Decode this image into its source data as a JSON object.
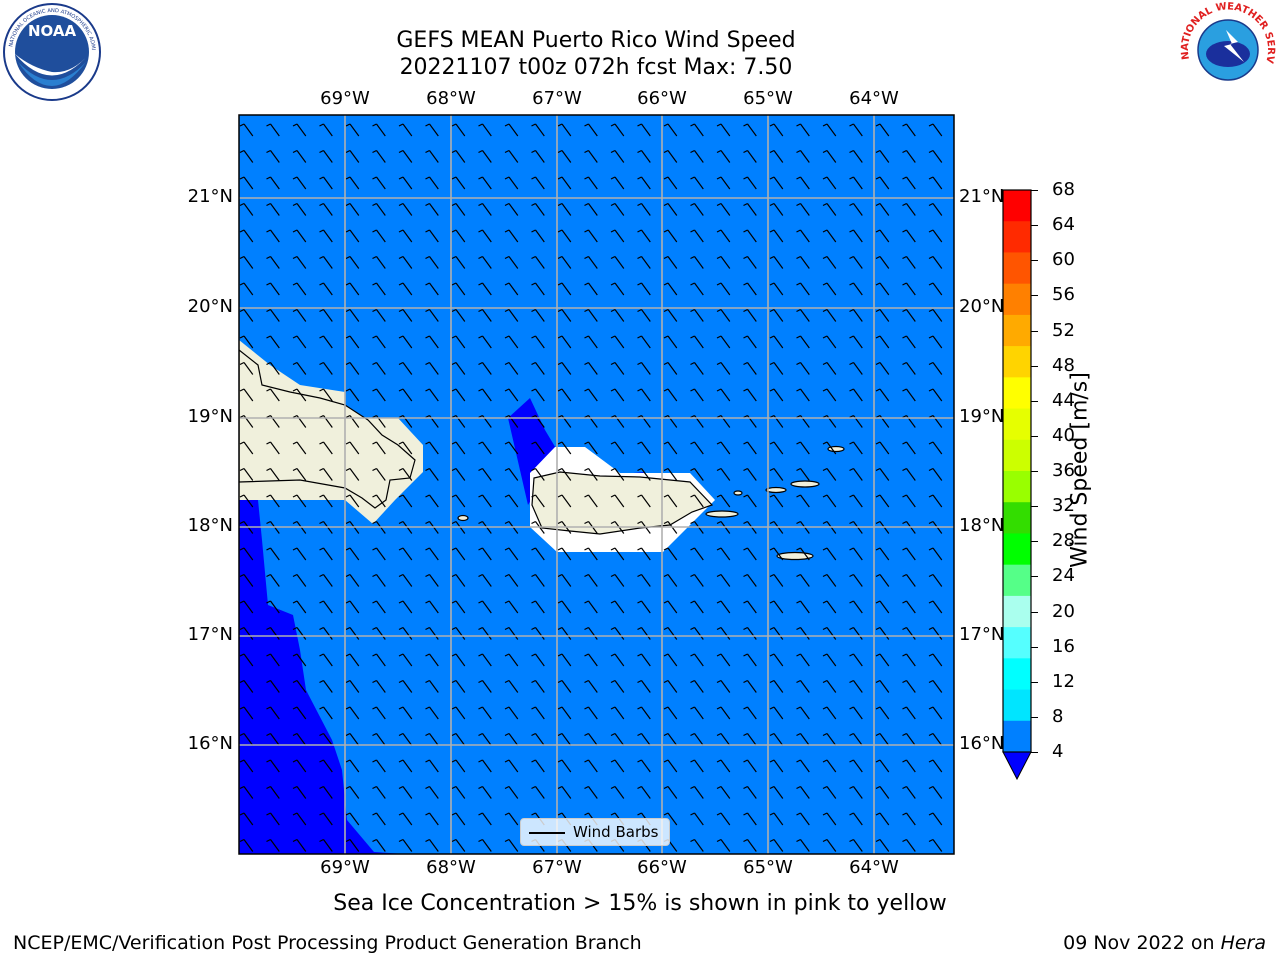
{
  "header": {
    "title_line1": "GEFS MEAN Puerto Rico Wind Speed",
    "title_line2": "20221107 t00z 072h fcst   Max: 7.50"
  },
  "logos": {
    "left": {
      "name": "noaa-logo",
      "text": "NOAA"
    },
    "right": {
      "name": "nws-logo",
      "text": "NATIONAL WEATHER SERVICE"
    }
  },
  "map": {
    "lon_labels": [
      "69°W",
      "68°W",
      "67°W",
      "66°W",
      "65°W",
      "64°W"
    ],
    "lat_labels": [
      "21°N",
      "20°N",
      "19°N",
      "18°N",
      "17°N",
      "16°N"
    ],
    "lon_range": [
      -70.0,
      -63.25
    ],
    "lat_range": [
      15.0,
      21.75
    ],
    "gridlines": true,
    "colors": {
      "ocean": "#0080ff",
      "low_wind": "#0000ff",
      "land": "#f0f0dc",
      "grid": "#b0b0b0"
    },
    "legend_label": "Wind Barbs",
    "barb_direction_deg": 110
  },
  "colorbar": {
    "label": "Wind Speed [m/s]",
    "ticks": [
      "68",
      "64",
      "60",
      "56",
      "52",
      "48",
      "44",
      "40",
      "36",
      "32",
      "28",
      "24",
      "20",
      "16",
      "12",
      "8",
      "4"
    ],
    "colors": [
      "#ff0000",
      "#ff2a00",
      "#ff5500",
      "#ff8000",
      "#ffaa00",
      "#ffd400",
      "#ffff00",
      "#e6ff00",
      "#ccff00",
      "#99ff00",
      "#33dd00",
      "#00ff00",
      "#55ff88",
      "#aaffee",
      "#55ffff",
      "#00ffff",
      "#00e5ff",
      "#0080ff"
    ],
    "under_color": "#0000ff"
  },
  "caption": "Sea Ice Concentration > 15% is shown in pink to yellow",
  "footer": {
    "left": "NCEP/EMC/Verification Post Processing Product Generation Branch",
    "right_prefix": "09 Nov 2022 on ",
    "right_host": "Hera"
  }
}
